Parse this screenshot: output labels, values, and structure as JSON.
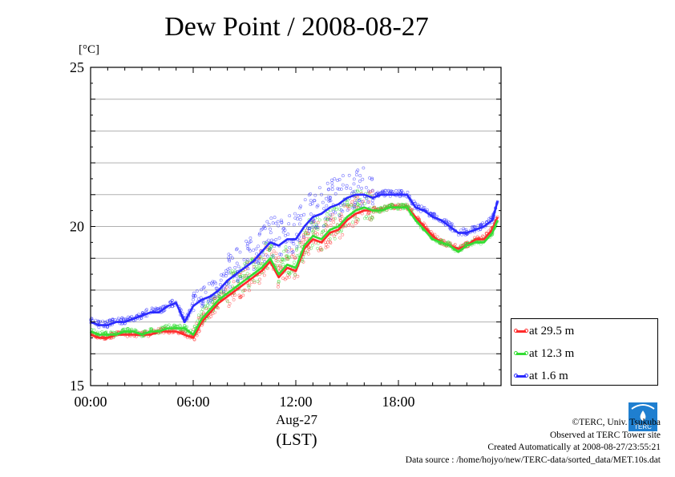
{
  "title": "Dew Point / 2008-08-27",
  "unit": "[°C]",
  "x_category": "Aug-27",
  "x_label": "(LST)",
  "footer": {
    "copyright": "©TERC, Univ. Tsukuba",
    "observed": "Observed at TERC Tower site",
    "created": "Created Automatically at 2008-08-27/23:55:21",
    "source": "Data source : /home/hojyo/new/TERC-data/sorted_data/MET.10s.dat"
  },
  "logo_text": "TERC",
  "chart_data": {
    "type": "line",
    "title": "Dew Point / 2008-08-27",
    "xlabel": "(LST)",
    "ylabel": "[°C]",
    "xlim": [
      0,
      24
    ],
    "ylim": [
      15,
      25
    ],
    "x_ticks": [
      {
        "value": 0,
        "label": "00:00"
      },
      {
        "value": 6,
        "label": "06:00"
      },
      {
        "value": 12,
        "label": "12:00"
      },
      {
        "value": 18,
        "label": "18:00"
      }
    ],
    "y_ticks": [
      {
        "value": 15,
        "label": "15"
      },
      {
        "value": 20,
        "label": "20"
      },
      {
        "value": 25,
        "label": "25"
      }
    ],
    "grid": true,
    "legend_position": "bottom-right, outside plot",
    "x": [
      0,
      0.5,
      1,
      1.5,
      2,
      2.5,
      3,
      3.5,
      4,
      4.5,
      5,
      5.5,
      6,
      6.5,
      7,
      7.5,
      8,
      8.5,
      9,
      9.5,
      10,
      10.5,
      11,
      11.5,
      12,
      12.5,
      13,
      13.5,
      14,
      14.5,
      15,
      15.5,
      16,
      16.5,
      17,
      17.5,
      18,
      18.5,
      19,
      19.5,
      20,
      20.5,
      21,
      21.5,
      22,
      22.5,
      23,
      23.5,
      23.8
    ],
    "series": [
      {
        "name": "at 29.5 m",
        "color": "#ff2a2a",
        "values": [
          16.6,
          16.5,
          16.5,
          16.6,
          16.6,
          16.6,
          16.6,
          16.6,
          16.7,
          16.7,
          16.7,
          16.6,
          16.5,
          17.0,
          17.3,
          17.6,
          17.8,
          18.0,
          18.2,
          18.4,
          18.6,
          18.9,
          18.4,
          18.7,
          18.6,
          19.3,
          19.6,
          19.5,
          19.8,
          19.9,
          20.2,
          20.4,
          20.5,
          20.5,
          20.5,
          20.6,
          20.6,
          20.6,
          20.3,
          20.0,
          19.7,
          19.5,
          19.4,
          19.3,
          19.4,
          19.6,
          19.6,
          19.9,
          20.3
        ]
      },
      {
        "name": "at 12.3 m",
        "color": "#33dd33",
        "values": [
          16.7,
          16.6,
          16.6,
          16.6,
          16.7,
          16.7,
          16.6,
          16.7,
          16.7,
          16.8,
          16.8,
          16.8,
          16.6,
          17.1,
          17.4,
          17.7,
          17.9,
          18.1,
          18.3,
          18.5,
          18.7,
          19.0,
          18.5,
          18.8,
          18.7,
          19.4,
          19.7,
          19.6,
          19.9,
          20.0,
          20.3,
          20.5,
          20.6,
          20.5,
          20.5,
          20.6,
          20.6,
          20.6,
          20.2,
          19.9,
          19.6,
          19.5,
          19.4,
          19.2,
          19.4,
          19.5,
          19.5,
          19.8,
          20.2
        ]
      },
      {
        "name": "at 1.6 m",
        "color": "#2a2aff",
        "values": [
          17.0,
          16.9,
          16.9,
          17.0,
          17.0,
          17.1,
          17.2,
          17.3,
          17.3,
          17.5,
          17.6,
          17.0,
          17.5,
          17.7,
          17.8,
          18.0,
          18.3,
          18.5,
          18.7,
          18.9,
          19.2,
          19.5,
          19.4,
          19.6,
          19.6,
          20.0,
          20.3,
          20.4,
          20.6,
          20.7,
          20.9,
          21.0,
          21.0,
          20.9,
          21.0,
          21.0,
          21.0,
          21.0,
          20.6,
          20.5,
          20.3,
          20.2,
          20.0,
          19.8,
          19.8,
          19.9,
          20.0,
          20.2,
          20.8
        ]
      }
    ]
  }
}
